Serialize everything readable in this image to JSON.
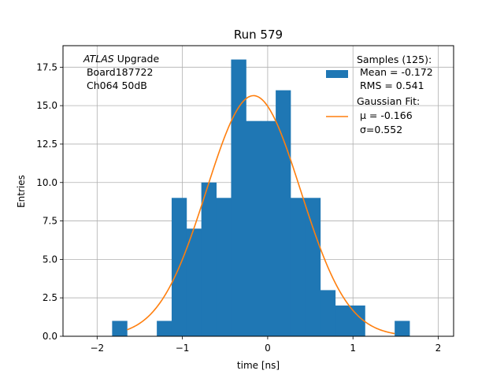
{
  "chart_data": {
    "type": "bar",
    "title": "Run 579",
    "xlabel": "time [ns]",
    "ylabel": "Entries",
    "xlim": [
      -2.4,
      2.18
    ],
    "ylim": [
      0,
      18.9
    ],
    "grid": true,
    "xticks": [
      -2,
      -1,
      0,
      1,
      2
    ],
    "xtick_labels": [
      "−2",
      "−1",
      "0",
      "1",
      "2"
    ],
    "yticks": [
      0,
      2.5,
      5,
      7.5,
      10,
      12.5,
      15,
      17.5
    ],
    "ytick_labels": [
      "0.0",
      "2.5",
      "5.0",
      "7.5",
      "10.0",
      "12.5",
      "15.0",
      "17.5"
    ],
    "annotation": {
      "italic": "ATLAS",
      "line1_rest": " Upgrade",
      "line2": " Board187722",
      "line3": " Ch064 50dB"
    },
    "histogram": {
      "color": "#1f77b4",
      "bin_edges": [
        -1.824,
        -1.649,
        -1.475,
        -1.3,
        -1.126,
        -0.952,
        -0.778,
        -0.603,
        -0.429,
        -0.254,
        -0.08,
        0.094,
        0.268,
        0.443,
        0.617,
        0.792,
        0.966,
        1.14,
        1.315,
        1.489,
        1.663
      ],
      "counts": [
        1,
        0,
        0,
        1,
        9,
        7,
        10,
        9,
        18,
        14,
        14,
        16,
        9,
        9,
        3,
        2,
        2,
        0,
        0,
        1
      ]
    },
    "fit": {
      "color": "#ff7f0e",
      "mu": -0.166,
      "sigma": 0.552,
      "amplitude": 15.65,
      "x_range": [
        -1.649,
        1.489
      ]
    },
    "legend": {
      "placement": "top-right",
      "entries": [
        {
          "lines": [
            "Samples (125):",
            " Mean = -0.172",
            " RMS = 0.541"
          ]
        },
        {
          "lines": [
            "Gaussian Fit:",
            " μ = -0.166",
            " σ=0.552"
          ]
        }
      ]
    }
  }
}
